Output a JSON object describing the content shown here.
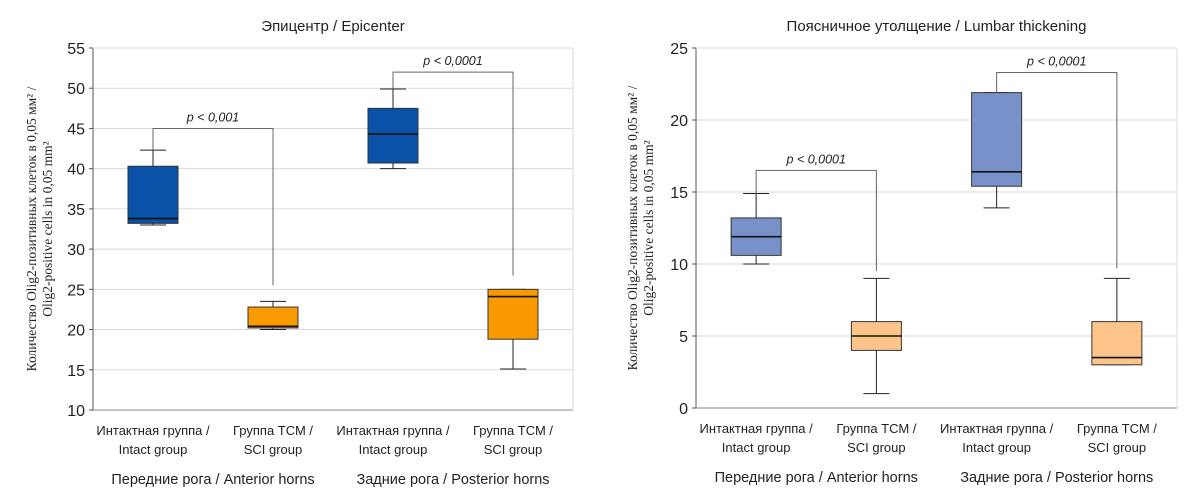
{
  "chart_data": [
    {
      "type": "box",
      "title": "Эпицентр / Epicenter",
      "ylabel_line1": "Количество Olig2-позитивных клеток в 0,05 мм² /",
      "ylabel_line2": "Olig2-positive cells in 0,05 mm²",
      "ylim": [
        10,
        55
      ],
      "yticks": [
        10,
        15,
        20,
        25,
        30,
        35,
        40,
        45,
        50,
        55
      ],
      "grid": true,
      "categories": [
        {
          "line1": "Интактная группа /",
          "line2": "Intact group"
        },
        {
          "line1": "Группа ТСМ /",
          "line2": "SCI group"
        },
        {
          "line1": "Интактная группа /",
          "line2": "Intact group"
        },
        {
          "line1": "Группа ТСМ /",
          "line2": "SCI group"
        }
      ],
      "group_labels": [
        "Передние рога / Anterior horns",
        "Задние рога / Posterior horns"
      ],
      "boxes": [
        {
          "min": 33.0,
          "q1": 33.2,
          "median": 33.8,
          "q3": 40.3,
          "max": 42.3,
          "color": "#0a51a8"
        },
        {
          "min": 20.0,
          "q1": 20.2,
          "median": 20.4,
          "q3": 22.8,
          "max": 23.5,
          "color": "#f99b00"
        },
        {
          "min": 40.0,
          "q1": 40.7,
          "median": 44.3,
          "q3": 47.5,
          "max": 49.9,
          "color": "#0a51a8"
        },
        {
          "min": 15.1,
          "q1": 18.8,
          "median": 24.1,
          "q3": 25.0,
          "max": 25.0,
          "color": "#f99b00"
        }
      ],
      "annotations": [
        {
          "text": "p < 0,001",
          "from": 0,
          "to": 1,
          "y": 45.0,
          "from_end": 42.3,
          "to_end": 25.5
        },
        {
          "text": "p < 0,0001",
          "from": 2,
          "to": 3,
          "y": 52.0,
          "from_end": 49.9,
          "to_end": 26.7
        }
      ]
    },
    {
      "type": "box",
      "title": "Поясничное утолщение / Lumbar thickening",
      "ylabel_line1": "Количество Olig2-позитивных клеток в 0,05 мм² /",
      "ylabel_line2": "Olig2-positive cells in 0,05 mm²",
      "ylim": [
        0,
        25
      ],
      "yticks": [
        0,
        5,
        10,
        15,
        20,
        25
      ],
      "grid": true,
      "categories": [
        {
          "line1": "Интактная группа /",
          "line2": "Intact group"
        },
        {
          "line1": "Группа ТСМ /",
          "line2": "SCI group"
        },
        {
          "line1": "Интактная группа /",
          "line2": "Intact group"
        },
        {
          "line1": "Группа ТСМ /",
          "line2": "SCI group"
        }
      ],
      "group_labels": [
        "Передние рога / Anterior horns",
        "Задние рога / Posterior horns"
      ],
      "boxes": [
        {
          "min": 10.0,
          "q1": 10.6,
          "median": 11.9,
          "q3": 13.2,
          "max": 14.9,
          "color": "#7892c9"
        },
        {
          "min": 1.0,
          "q1": 4.0,
          "median": 5.0,
          "q3": 6.0,
          "max": 9.0,
          "color": "#fdc58a"
        },
        {
          "min": 13.9,
          "q1": 15.4,
          "median": 16.4,
          "q3": 21.9,
          "max": 21.9,
          "color": "#7892c9"
        },
        {
          "min": 3.0,
          "q1": 3.0,
          "median": 3.5,
          "q3": 6.0,
          "max": 9.0,
          "color": "#fdc58a"
        }
      ],
      "annotations": [
        {
          "text": "p < 0,0001",
          "from": 0,
          "to": 1,
          "y": 16.5,
          "from_end": 14.9,
          "to_end": 9.5
        },
        {
          "text": "p < 0,0001",
          "from": 2,
          "to": 3,
          "y": 23.3,
          "from_end": 21.9,
          "to_end": 9.7
        }
      ]
    }
  ]
}
